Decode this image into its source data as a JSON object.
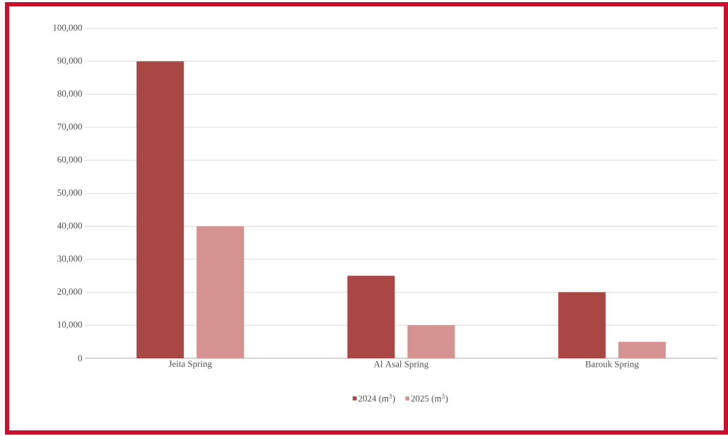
{
  "chart_data": {
    "type": "bar",
    "categories": [
      "Jeita Spring",
      "Al Asal Spring",
      "Barouk Spring"
    ],
    "series": [
      {
        "name": "2024 (m$^{3}$)",
        "color": "#a84744",
        "values": [
          90000,
          25000,
          20000
        ]
      },
      {
        "name": "2025 (m$^{3}$)",
        "color": "#d49391",
        "values": [
          40000,
          10000,
          5000
        ]
      }
    ],
    "ylim": [
      0,
      100000
    ],
    "yticks": [
      0,
      {
        "value": 10000,
        "label": "10,000"
      },
      {
        "value": 20000,
        "label": "20,000"
      },
      {
        "value": 30000,
        "label": "30,000"
      },
      {
        "value": 40000,
        "label": "40,000"
      },
      {
        "value": 50000,
        "label": "50,000"
      },
      {
        "value": 60000,
        "label": "60,000"
      },
      {
        "value": 70000,
        "label": "70,000"
      },
      {
        "value": 80000,
        "label": "80,000"
      },
      {
        "value": 90000,
        "label": "90,000"
      },
      {
        "value": 100000,
        "label": "100,000"
      }
    ],
    "grid": "y",
    "legend": "bottom"
  }
}
